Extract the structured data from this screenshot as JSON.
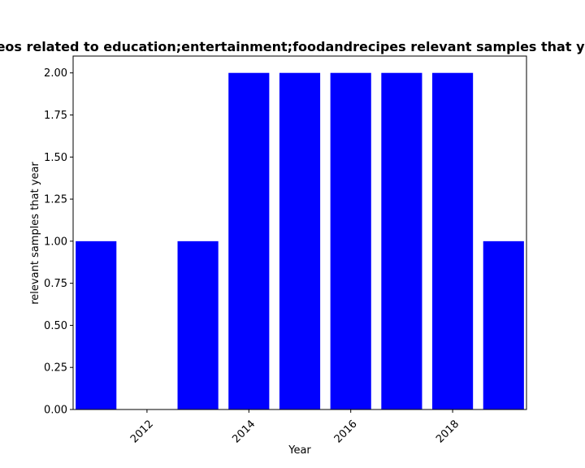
{
  "chart_data": {
    "type": "bar",
    "title": "Videos related to education;entertainment;foodandrecipes relevant samples that year in",
    "xlabel": "Year",
    "ylabel": "relevant samples that year",
    "x": [
      2011,
      2012,
      2013,
      2014,
      2015,
      2016,
      2017,
      2018,
      2019
    ],
    "values": [
      1,
      0,
      1,
      2,
      2,
      2,
      2,
      2,
      1
    ],
    "bar_width": 0.8,
    "color": "#0000ff",
    "xlim": [
      2010.55,
      2019.45
    ],
    "ylim": [
      0,
      2.1
    ],
    "xticks": [
      2012,
      2014,
      2016,
      2018
    ],
    "yticks": [
      0.0,
      0.25,
      0.5,
      0.75,
      1.0,
      1.25,
      1.5,
      1.75,
      2.0
    ],
    "ytick_labels": [
      "0.00",
      "0.25",
      "0.50",
      "0.75",
      "1.00",
      "1.25",
      "1.50",
      "1.75",
      "2.00"
    ],
    "xtick_rotation": 45,
    "grid": false,
    "legend": false
  }
}
